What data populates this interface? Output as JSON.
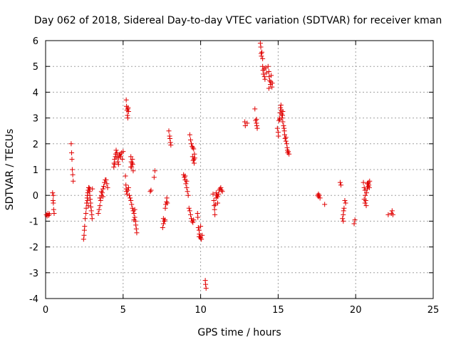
{
  "chart_data": {
    "type": "scatter",
    "title": "Day 062 of 2018, Sidereal Day-to-day VTEC variation (SDTVAR) for receiver kman",
    "xlabel": "GPS time / hours",
    "ylabel": "SDTVAR / TECUs",
    "xlim": [
      0,
      25
    ],
    "ylim": [
      -4,
      6
    ],
    "xticks": [
      "0",
      "5",
      "10",
      "15",
      "20",
      "25"
    ],
    "yticks": [
      "-4",
      "-3",
      "-2",
      "-1",
      "0",
      "1",
      "2",
      "3",
      "4",
      "5",
      "6"
    ],
    "grid": true,
    "marker": "plus",
    "marker_color": "#e00000",
    "series": [
      {
        "name": "SDTVAR",
        "points": [
          [
            0.05,
            -0.75
          ],
          [
            0.1,
            -0.8
          ],
          [
            0.15,
            -0.7
          ],
          [
            0.2,
            -0.78
          ],
          [
            0.25,
            -0.72
          ],
          [
            0.45,
            0.1
          ],
          [
            0.48,
            -0.2
          ],
          [
            0.5,
            -0.3
          ],
          [
            0.52,
            -0.55
          ],
          [
            0.55,
            -0.7
          ],
          [
            0.5,
            0.0
          ],
          [
            1.65,
            2.0
          ],
          [
            1.68,
            1.65
          ],
          [
            1.7,
            1.4
          ],
          [
            1.72,
            1.0
          ],
          [
            1.75,
            0.8
          ],
          [
            1.78,
            0.55
          ],
          [
            2.45,
            -1.7
          ],
          [
            2.48,
            -1.55
          ],
          [
            2.5,
            -1.35
          ],
          [
            2.52,
            -1.2
          ],
          [
            2.55,
            -0.9
          ],
          [
            2.6,
            -0.7
          ],
          [
            2.62,
            -0.5
          ],
          [
            2.65,
            -0.3
          ],
          [
            2.68,
            -0.1
          ],
          [
            2.7,
            0.0
          ],
          [
            2.72,
            0.1
          ],
          [
            2.75,
            0.2
          ],
          [
            2.78,
            0.3
          ],
          [
            2.8,
            0.3
          ],
          [
            2.82,
            0.15
          ],
          [
            2.85,
            0.0
          ],
          [
            2.88,
            -0.15
          ],
          [
            2.9,
            -0.3
          ],
          [
            2.92,
            -0.45
          ],
          [
            2.95,
            -0.6
          ],
          [
            2.98,
            -0.75
          ],
          [
            3.0,
            -0.9
          ],
          [
            3.02,
            0.25
          ],
          [
            2.7,
            -0.2
          ],
          [
            2.75,
            -0.4
          ],
          [
            2.85,
            0.25
          ],
          [
            3.4,
            -0.7
          ],
          [
            3.45,
            -0.55
          ],
          [
            3.5,
            -0.4
          ],
          [
            3.55,
            -0.2
          ],
          [
            3.6,
            0.0
          ],
          [
            3.65,
            0.1
          ],
          [
            3.7,
            0.25
          ],
          [
            3.75,
            0.35
          ],
          [
            3.8,
            0.5
          ],
          [
            3.85,
            0.6
          ],
          [
            3.9,
            0.6
          ],
          [
            3.95,
            0.45
          ],
          [
            4.0,
            0.3
          ],
          [
            3.5,
            -0.1
          ],
          [
            3.6,
            0.15
          ],
          [
            3.7,
            -0.05
          ],
          [
            4.4,
            1.1
          ],
          [
            4.42,
            1.25
          ],
          [
            4.45,
            1.4
          ],
          [
            4.5,
            1.5
          ],
          [
            4.52,
            1.6
          ],
          [
            4.55,
            1.75
          ],
          [
            4.6,
            1.5
          ],
          [
            4.65,
            1.3
          ],
          [
            4.7,
            1.45
          ],
          [
            4.75,
            1.55
          ],
          [
            4.8,
            1.6
          ],
          [
            4.85,
            1.5
          ],
          [
            4.9,
            1.65
          ],
          [
            4.95,
            1.4
          ],
          [
            5.0,
            1.7
          ],
          [
            4.45,
            1.2
          ],
          [
            4.6,
            1.65
          ],
          [
            4.7,
            1.2
          ],
          [
            5.2,
            3.7
          ],
          [
            5.22,
            3.45
          ],
          [
            5.25,
            3.3
          ],
          [
            5.28,
            3.1
          ],
          [
            5.3,
            3.0
          ],
          [
            5.32,
            3.4
          ],
          [
            5.35,
            3.25
          ],
          [
            5.3,
            3.35
          ],
          [
            5.15,
            0.75
          ],
          [
            5.18,
            0.4
          ],
          [
            5.2,
            0.25
          ],
          [
            5.22,
            0.15
          ],
          [
            5.25,
            0.05
          ],
          [
            5.3,
            0.2
          ],
          [
            5.35,
            0.3
          ],
          [
            5.4,
            0.0
          ],
          [
            5.45,
            -0.1
          ],
          [
            5.5,
            -0.2
          ],
          [
            5.55,
            -0.35
          ],
          [
            5.6,
            -0.5
          ],
          [
            5.65,
            -0.6
          ],
          [
            5.7,
            -0.7
          ],
          [
            5.75,
            -0.85
          ],
          [
            5.8,
            -1.0
          ],
          [
            5.82,
            -1.15
          ],
          [
            5.85,
            -1.3
          ],
          [
            5.88,
            -1.45
          ],
          [
            5.75,
            -0.55
          ],
          [
            5.7,
            -0.95
          ],
          [
            5.5,
            1.5
          ],
          [
            5.52,
            1.3
          ],
          [
            5.55,
            1.1
          ],
          [
            5.58,
            1.25
          ],
          [
            5.6,
            1.4
          ],
          [
            5.62,
            1.2
          ],
          [
            5.65,
            0.95
          ],
          [
            5.5,
            1.1
          ],
          [
            6.75,
            0.15
          ],
          [
            6.8,
            0.2
          ],
          [
            7.05,
            0.95
          ],
          [
            7.0,
            0.7
          ],
          [
            7.55,
            -1.25
          ],
          [
            7.6,
            -1.1
          ],
          [
            7.65,
            -1.0
          ],
          [
            7.7,
            -0.95
          ],
          [
            7.72,
            -0.5
          ],
          [
            7.75,
            -0.35
          ],
          [
            7.8,
            -0.25
          ],
          [
            7.82,
            -0.1
          ],
          [
            7.85,
            -0.3
          ],
          [
            7.6,
            -0.9
          ],
          [
            7.95,
            2.5
          ],
          [
            8.0,
            2.3
          ],
          [
            8.02,
            2.2
          ],
          [
            8.05,
            2.05
          ],
          [
            8.08,
            1.95
          ],
          [
            8.9,
            0.8
          ],
          [
            8.95,
            0.7
          ],
          [
            9.0,
            0.6
          ],
          [
            9.05,
            0.45
          ],
          [
            9.1,
            0.3
          ],
          [
            9.15,
            0.15
          ],
          [
            9.2,
            0.0
          ],
          [
            9.0,
            0.75
          ],
          [
            9.1,
            0.55
          ],
          [
            9.25,
            -0.5
          ],
          [
            9.3,
            -0.6
          ],
          [
            9.35,
            -0.75
          ],
          [
            9.4,
            -0.9
          ],
          [
            9.45,
            -1.0
          ],
          [
            9.5,
            -1.05
          ],
          [
            9.55,
            -0.95
          ],
          [
            9.3,
            2.35
          ],
          [
            9.35,
            2.15
          ],
          [
            9.4,
            2.0
          ],
          [
            9.45,
            1.9
          ],
          [
            9.5,
            1.85
          ],
          [
            9.55,
            1.8
          ],
          [
            9.6,
            1.6
          ],
          [
            9.48,
            1.5
          ],
          [
            9.52,
            1.35
          ],
          [
            9.56,
            1.4
          ],
          [
            9.58,
            1.25
          ],
          [
            9.62,
            1.45
          ],
          [
            9.8,
            -0.7
          ],
          [
            9.82,
            -0.85
          ],
          [
            9.85,
            -1.25
          ],
          [
            9.9,
            -1.35
          ],
          [
            9.92,
            -1.5
          ],
          [
            9.95,
            -1.6
          ],
          [
            10.0,
            -1.65
          ],
          [
            10.05,
            -1.7
          ],
          [
            10.1,
            -1.55
          ],
          [
            10.0,
            -1.2
          ],
          [
            9.9,
            -1.6
          ],
          [
            10.3,
            -3.3
          ],
          [
            10.32,
            -3.45
          ],
          [
            10.35,
            -3.6
          ],
          [
            10.8,
            0.05
          ],
          [
            10.85,
            -0.2
          ],
          [
            10.88,
            -0.4
          ],
          [
            10.9,
            -0.55
          ],
          [
            10.92,
            -0.75
          ],
          [
            10.95,
            -0.35
          ],
          [
            11.0,
            -0.1
          ],
          [
            11.05,
            0.0
          ],
          [
            11.1,
            -0.05
          ],
          [
            11.15,
            0.05
          ],
          [
            11.2,
            0.2
          ],
          [
            11.25,
            0.25
          ],
          [
            11.3,
            0.3
          ],
          [
            11.35,
            0.2
          ],
          [
            11.4,
            0.15
          ],
          [
            11.0,
            0.1
          ],
          [
            11.1,
            -0.3
          ],
          [
            12.85,
            2.85
          ],
          [
            12.88,
            2.7
          ],
          [
            13.0,
            2.8
          ],
          [
            13.5,
            3.35
          ],
          [
            13.55,
            2.9
          ],
          [
            13.6,
            2.8
          ],
          [
            13.62,
            2.7
          ],
          [
            13.65,
            2.6
          ],
          [
            13.6,
            2.95
          ],
          [
            13.85,
            5.9
          ],
          [
            13.88,
            5.75
          ],
          [
            13.9,
            5.5
          ],
          [
            13.92,
            5.4
          ],
          [
            13.95,
            5.55
          ],
          [
            14.0,
            5.3
          ],
          [
            14.0,
            5.0
          ],
          [
            14.02,
            4.85
          ],
          [
            14.05,
            4.7
          ],
          [
            14.1,
            4.9
          ],
          [
            14.12,
            4.6
          ],
          [
            14.15,
            4.5
          ],
          [
            14.2,
            4.95
          ],
          [
            14.25,
            4.75
          ],
          [
            14.35,
            5.0
          ],
          [
            14.4,
            4.8
          ],
          [
            14.42,
            4.6
          ],
          [
            14.45,
            4.45
          ],
          [
            14.5,
            4.3
          ],
          [
            14.52,
            4.4
          ],
          [
            14.55,
            4.65
          ],
          [
            14.6,
            4.2
          ],
          [
            14.62,
            4.35
          ],
          [
            14.4,
            4.15
          ],
          [
            14.95,
            2.6
          ],
          [
            15.0,
            2.45
          ],
          [
            15.02,
            2.3
          ],
          [
            15.05,
            2.9
          ],
          [
            15.1,
            3.0
          ],
          [
            15.12,
            3.2
          ],
          [
            15.15,
            3.4
          ],
          [
            15.18,
            3.5
          ],
          [
            15.2,
            3.3
          ],
          [
            15.22,
            3.15
          ],
          [
            15.25,
            3.0
          ],
          [
            15.28,
            3.1
          ],
          [
            15.3,
            2.85
          ],
          [
            15.35,
            2.7
          ],
          [
            15.38,
            2.6
          ],
          [
            15.4,
            2.5
          ],
          [
            15.42,
            2.35
          ],
          [
            15.45,
            2.2
          ],
          [
            15.5,
            2.1
          ],
          [
            15.55,
            2.0
          ],
          [
            15.58,
            1.85
          ],
          [
            15.6,
            1.75
          ],
          [
            15.62,
            1.65
          ],
          [
            15.65,
            1.7
          ],
          [
            15.7,
            1.6
          ],
          [
            15.5,
            2.25
          ],
          [
            15.3,
            3.25
          ],
          [
            15.1,
            2.95
          ],
          [
            17.55,
            0.0
          ],
          [
            17.6,
            -0.05
          ],
          [
            17.65,
            0.0
          ],
          [
            17.7,
            -0.1
          ],
          [
            17.6,
            0.05
          ],
          [
            18.0,
            -0.35
          ],
          [
            19.0,
            0.5
          ],
          [
            19.05,
            0.4
          ],
          [
            19.15,
            -0.9
          ],
          [
            19.2,
            -0.75
          ],
          [
            19.22,
            -0.6
          ],
          [
            19.25,
            -0.5
          ],
          [
            19.3,
            -0.2
          ],
          [
            19.35,
            -0.3
          ],
          [
            19.2,
            -1.0
          ],
          [
            19.9,
            -1.1
          ],
          [
            19.95,
            -0.95
          ],
          [
            20.5,
            0.5
          ],
          [
            20.55,
            0.3
          ],
          [
            20.6,
            0.2
          ],
          [
            20.62,
            0.0
          ],
          [
            20.65,
            -0.2
          ],
          [
            20.68,
            -0.4
          ],
          [
            20.55,
            -0.15
          ],
          [
            20.6,
            -0.3
          ],
          [
            20.7,
            0.1
          ],
          [
            20.75,
            0.25
          ],
          [
            20.8,
            0.45
          ],
          [
            20.82,
            0.5
          ],
          [
            20.85,
            0.4
          ],
          [
            20.88,
            0.3
          ],
          [
            20.9,
            0.55
          ],
          [
            20.8,
            0.35
          ],
          [
            20.75,
            0.45
          ],
          [
            22.1,
            -0.75
          ],
          [
            22.3,
            -0.7
          ],
          [
            22.35,
            -0.6
          ],
          [
            22.4,
            -0.75
          ]
        ]
      }
    ]
  }
}
